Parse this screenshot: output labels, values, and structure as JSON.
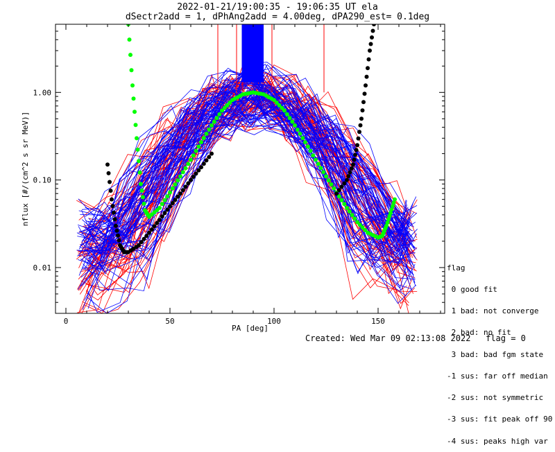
{
  "chart_data": {
    "type": "line",
    "title": "2022-01-21/19:00:35 - 19:06:35 UT ela",
    "subtitle": "dSectr2add = 1, dPhAng2add = 4.00deg, dPA290_est=   0.1deg",
    "xlabel": "PA [deg]",
    "ylabel": "nflux [#/(cm^2 s sr MeV)]",
    "xlim": [
      -5,
      182
    ],
    "ylim": [
      0.003,
      6.0
    ],
    "yscale": "log",
    "x_ticks": [
      "0",
      "50",
      "100",
      "150"
    ],
    "y_ticks": [
      "0.01",
      "0.10",
      "1.00"
    ],
    "y_tick_values": [
      0.01,
      0.1,
      1.0
    ],
    "x_tick_values": [
      0,
      50,
      100,
      150
    ],
    "series": [
      {
        "color": "#00ff00",
        "marker": "filled-circle",
        "x": [
          30,
          32,
          34,
          36,
          38,
          40,
          45,
          50,
          55,
          60,
          65,
          70,
          75,
          80,
          85,
          90,
          95,
          100,
          105,
          110,
          115,
          120,
          125,
          130,
          135,
          140,
          145,
          150,
          152,
          154,
          156,
          158
        ],
        "y": [
          6.0,
          1.2,
          0.3,
          0.09,
          0.045,
          0.038,
          0.048,
          0.072,
          0.11,
          0.17,
          0.27,
          0.42,
          0.62,
          0.82,
          0.95,
          1.0,
          0.95,
          0.82,
          0.62,
          0.42,
          0.27,
          0.17,
          0.11,
          0.072,
          0.048,
          0.033,
          0.025,
          0.022,
          0.023,
          0.03,
          0.042,
          0.06
        ]
      },
      {
        "color": "#000000",
        "marker": "filled-circle",
        "x": [
          20,
          22,
          24,
          26,
          28,
          30,
          35,
          40,
          45,
          50,
          55,
          60,
          65,
          70,
          130,
          135,
          138,
          140,
          142,
          144,
          146,
          148
        ],
        "y": [
          0.15,
          0.06,
          0.03,
          0.018,
          0.015,
          0.015,
          0.018,
          0.025,
          0.035,
          0.05,
          0.07,
          0.1,
          0.14,
          0.2,
          0.07,
          0.1,
          0.15,
          0.25,
          0.5,
          1.2,
          3.0,
          6.0
        ]
      }
    ]
  },
  "legend": {
    "title": "flag",
    "entries": [
      {
        "label": " 0 good fit",
        "color": "#000000"
      },
      {
        "label": " 1 bad: not converge",
        "color": "#000000"
      },
      {
        "label": " 2 bad: no fit",
        "color": "#000000"
      },
      {
        "label": " 3 bad: bad fgm state",
        "color": "#000000"
      },
      {
        "label": "-1 sus: far off median",
        "color": "#000000"
      },
      {
        "label": "-2 sus: not symmetric",
        "color": "#000000"
      },
      {
        "label": "-3 sus: fit peak off 90",
        "color": "#000000"
      },
      {
        "label": "-4 sus: peaks high var",
        "color": "#000000"
      }
    ]
  },
  "footer": {
    "created": "Created: Wed Mar 09 02:13:08 2022",
    "flag": "flag = 0"
  },
  "colors": {
    "data_blue": "#0000ff",
    "data_red": "#ff0000",
    "fit_green": "#00ff00",
    "fit_black": "#000000"
  }
}
